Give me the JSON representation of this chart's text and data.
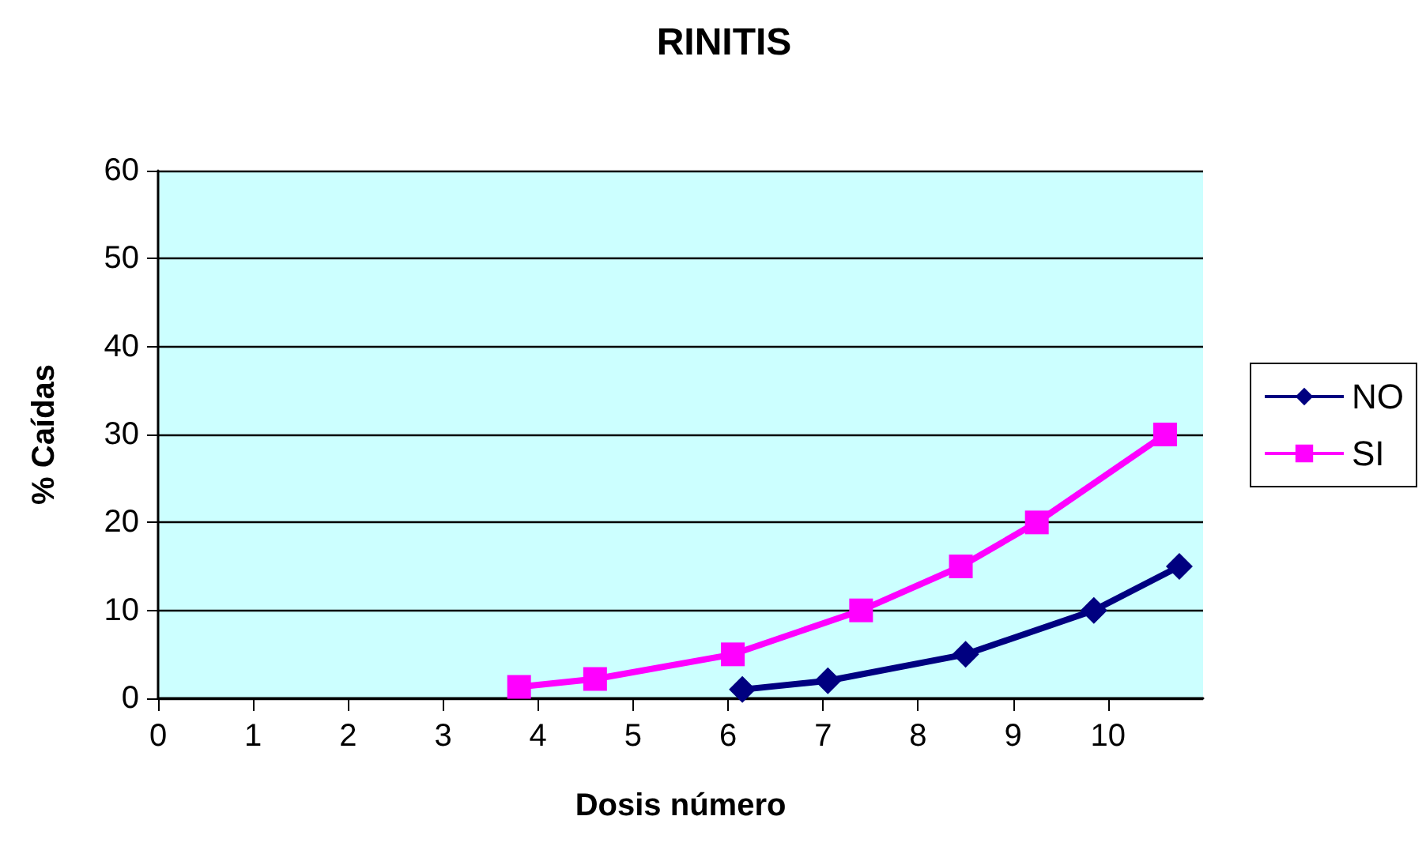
{
  "chart_data": {
    "type": "line",
    "title": "RINITIS",
    "xlabel": "Dosis número",
    "ylabel": "% Caídas",
    "series": [
      {
        "name": "NO",
        "color": "#000080",
        "marker": "diamond",
        "x": [
          6.15,
          7.05,
          8.5,
          9.85,
          10.75
        ],
        "values": [
          1,
          2,
          5,
          10,
          15
        ]
      },
      {
        "name": "SI",
        "color": "#ff00ff",
        "marker": "square",
        "x": [
          3.8,
          4.6,
          6.05,
          7.4,
          8.45,
          9.25,
          10.6
        ],
        "values": [
          1.3,
          2.2,
          5,
          10,
          15,
          20,
          30
        ]
      }
    ],
    "xlim": [
      0,
      11
    ],
    "xticks": [
      0,
      1,
      2,
      3,
      4,
      5,
      6,
      7,
      8,
      9,
      10
    ],
    "ylim": [
      0,
      60
    ],
    "yticks": [
      0,
      10,
      20,
      30,
      40,
      50,
      60
    ],
    "grid": "y",
    "legend": "right",
    "line_style": "solid"
  }
}
